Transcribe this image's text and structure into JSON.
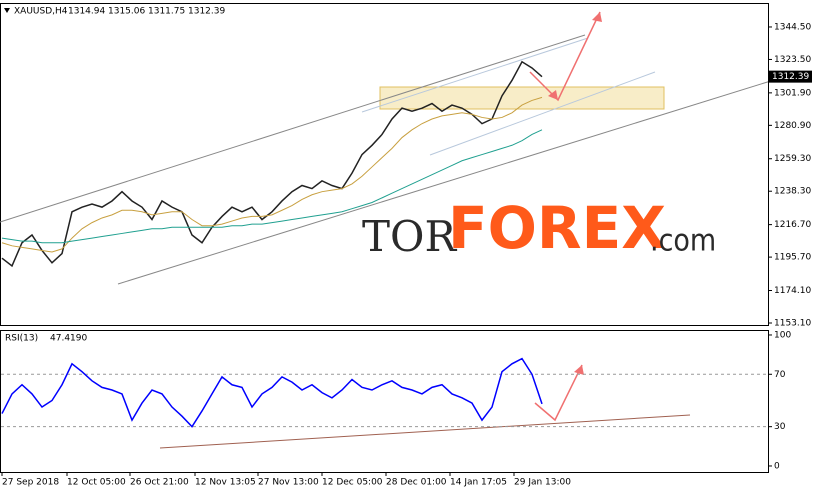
{
  "chart_data": [
    {
      "type": "line",
      "symbol": "XAUUSD,H4",
      "ohlc": [
        1314.94,
        1315.06,
        1311.75,
        1312.39
      ],
      "watermark": [
        "TOR",
        "FOREX",
        ".com"
      ],
      "ylim": [
        1151.8,
        1360.0
      ],
      "yticks": [
        {
          "value": 1344.5,
          "label": "1344.50"
        },
        {
          "value": 1323.5,
          "label": "1323.50"
        },
        {
          "value": 1301.9,
          "label": "1301.90"
        },
        {
          "value": 1280.9,
          "label": "1280.90"
        },
        {
          "value": 1259.3,
          "label": "1259.30"
        },
        {
          "value": 1238.3,
          "label": "1238.30"
        },
        {
          "value": 1216.7,
          "label": "1216.70"
        },
        {
          "value": 1195.7,
          "label": "1195.70"
        },
        {
          "value": 1174.1,
          "label": "1174.10"
        },
        {
          "value": 1153.1,
          "label": "1153.10"
        }
      ],
      "last_price": 1312.39,
      "series": [
        {
          "color": "#222222",
          "values": [
            1195,
            1190,
            1205,
            1210,
            1200,
            1192,
            1198,
            1225,
            1228,
            1230,
            1228,
            1232,
            1238,
            1232,
            1228,
            1220,
            1232,
            1228,
            1225,
            1210,
            1205,
            1215,
            1222,
            1228,
            1225,
            1228,
            1220,
            1225,
            1232,
            1238,
            1242,
            1240,
            1245,
            1242,
            1240,
            1250,
            1262,
            1268,
            1275,
            1285,
            1292,
            1290,
            1292,
            1295,
            1290,
            1294,
            1292,
            1288,
            1282,
            1285,
            1300,
            1310,
            1322,
            1318,
            1312.39
          ]
        },
        {
          "color": "#c8a040",
          "values": [
            1205,
            1203,
            1202,
            1201,
            1200,
            1199,
            1201,
            1208,
            1214,
            1218,
            1221,
            1223,
            1226,
            1226,
            1225,
            1223,
            1224,
            1225,
            1225,
            1220,
            1216,
            1216,
            1217,
            1219,
            1221,
            1222,
            1222,
            1223,
            1226,
            1229,
            1233,
            1236,
            1238,
            1239,
            1240,
            1243,
            1248,
            1254,
            1260,
            1266,
            1273,
            1278,
            1282,
            1285,
            1287,
            1288,
            1289,
            1288,
            1286,
            1285,
            1286,
            1289,
            1294,
            1297,
            1299
          ]
        },
        {
          "color": "#20a090",
          "values": [
            1208,
            1207,
            1206,
            1206,
            1205,
            1205,
            1205,
            1206,
            1207,
            1208,
            1209,
            1210,
            1211,
            1212,
            1213,
            1214,
            1214,
            1215,
            1215,
            1215,
            1215,
            1215,
            1215,
            1216,
            1216,
            1217,
            1217,
            1218,
            1219,
            1220,
            1221,
            1222,
            1223,
            1224,
            1225,
            1227,
            1229,
            1231,
            1234,
            1237,
            1240,
            1243,
            1246,
            1249,
            1252,
            1255,
            1258,
            1260,
            1262,
            1264,
            1266,
            1268,
            1271,
            1275,
            1278
          ]
        }
      ]
    },
    {
      "type": "line",
      "indicator": "RSI(13)",
      "current": {
        "value": 47.419,
        "label": "47.4190"
      },
      "ylim": [
        -4.6,
        103.8
      ],
      "yticks": [
        100,
        70,
        30,
        0
      ],
      "dashed_levels": [
        70,
        30
      ],
      "xticks": [
        {
          "value": 0,
          "label": "27 Sep 2018"
        },
        {
          "value": 6.5,
          "label": "12 Oct 05:00"
        },
        {
          "value": 12.8,
          "label": "26 Oct 21:00"
        },
        {
          "value": 19.3,
          "label": "12 Nov 13:05"
        },
        {
          "value": 25.6,
          "label": "27 Nov 13:00"
        },
        {
          "value": 32,
          "label": "12 Dec 05:00"
        },
        {
          "value": 38.4,
          "label": "28 Dec 01:00"
        },
        {
          "value": 44.8,
          "label": "14 Jan 17:05"
        },
        {
          "value": 51.2,
          "label": "29 Jan 13:00"
        }
      ],
      "series": [
        {
          "color": "#0000ff",
          "values": [
            40,
            55,
            62,
            55,
            45,
            50,
            62,
            78,
            72,
            65,
            60,
            58,
            55,
            35,
            48,
            58,
            55,
            45,
            38,
            30,
            42,
            55,
            68,
            62,
            60,
            45,
            55,
            60,
            68,
            64,
            58,
            62,
            56,
            52,
            58,
            66,
            60,
            58,
            62,
            65,
            60,
            58,
            55,
            60,
            62,
            55,
            52,
            48,
            35,
            45,
            72,
            78,
            82,
            70,
            47.419
          ]
        }
      ]
    }
  ]
}
